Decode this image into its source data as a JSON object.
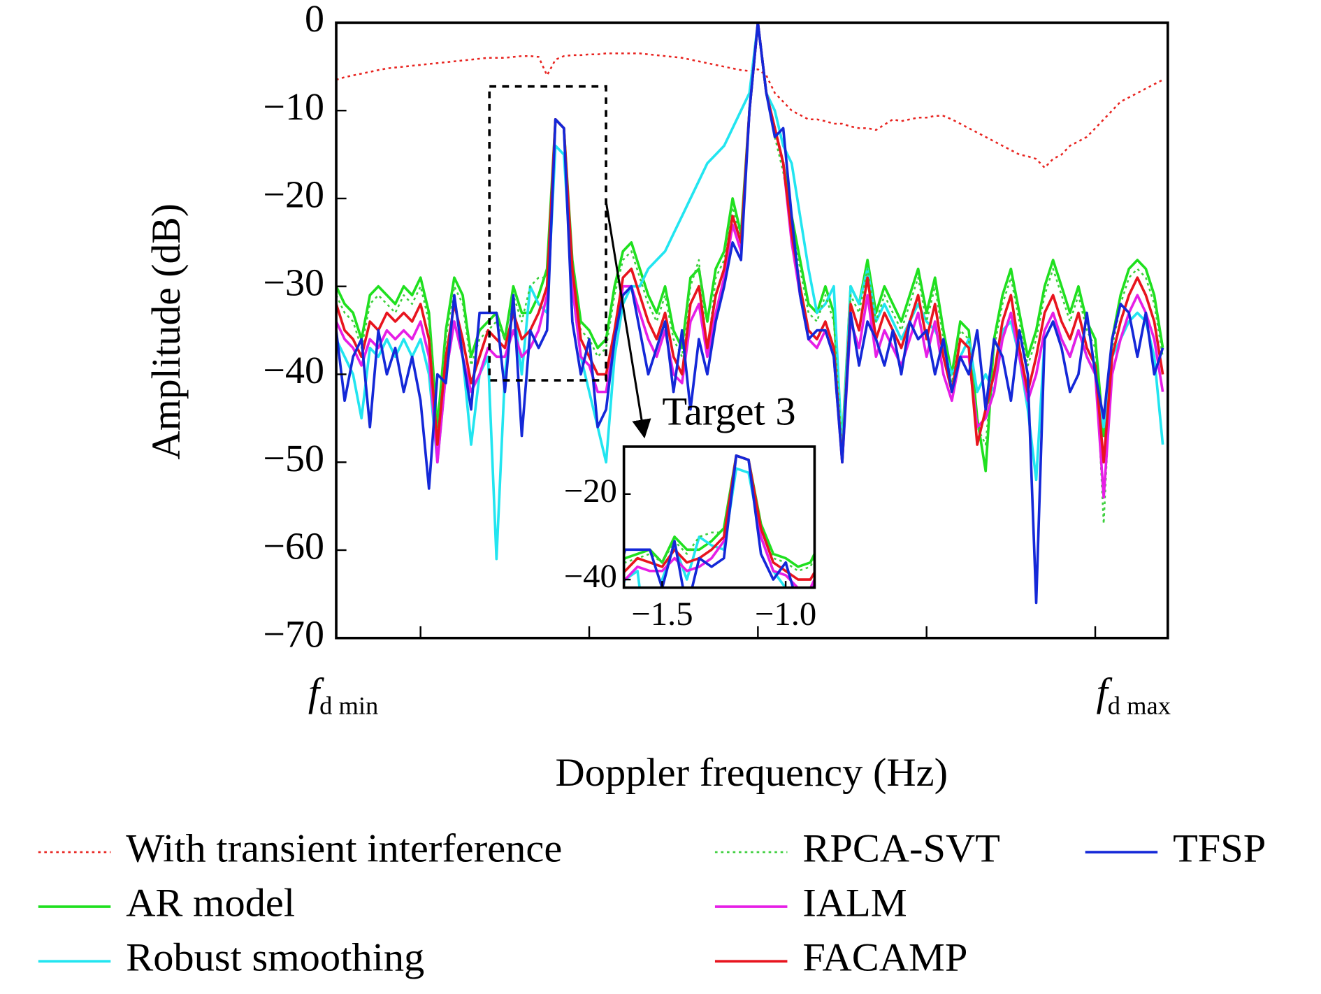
{
  "chart_data": {
    "type": "line",
    "x_label": "Doppler frequency (Hz)",
    "y_label": "Amplitude (dB)",
    "x": [
      -2.5,
      -2.45,
      -2.4,
      -2.35,
      -2.3,
      -2.25,
      -2.2,
      -2.15,
      -2.1,
      -2.05,
      -2,
      -1.95,
      -1.9,
      -1.85,
      -1.8,
      -1.75,
      -1.7,
      -1.65,
      -1.6,
      -1.55,
      -1.5,
      -1.45,
      -1.4,
      -1.35,
      -1.3,
      -1.25,
      -1.2,
      -1.15,
      -1.1,
      -1.05,
      -1,
      -0.95,
      -0.9,
      -0.85,
      -0.8,
      -0.75,
      -0.7,
      -0.65,
      -0.6,
      -0.55,
      -0.5,
      -0.45,
      -0.4,
      -0.35,
      -0.3,
      -0.25,
      -0.2,
      -0.15,
      -0.1,
      -0.05,
      0,
      0.05,
      0.1,
      0.15,
      0.2,
      0.25,
      0.3,
      0.35,
      0.4,
      0.45,
      0.5,
      0.55,
      0.6,
      0.65,
      0.7,
      0.75,
      0.8,
      0.85,
      0.9,
      0.95,
      1,
      1.05,
      1.1,
      1.15,
      1.2,
      1.25,
      1.3,
      1.35,
      1.4,
      1.45,
      1.5,
      1.55,
      1.6,
      1.65,
      1.7,
      1.75,
      1.8,
      1.85,
      1.9,
      1.95,
      2,
      2.05,
      2.1,
      2.15,
      2.2,
      2.25,
      2.3,
      2.35,
      2.4
    ],
    "xlim": [
      -2.5,
      2.43
    ],
    "xticks": [
      -2,
      -1,
      0,
      1,
      2
    ],
    "x_end_labels": [
      {
        "main": "f",
        "sub": "d min"
      },
      {
        "main": "f",
        "sub": "d max"
      }
    ],
    "ylim": [
      -70,
      0
    ],
    "yticks": [
      0,
      {
        "value": -10,
        "label": "−10"
      },
      {
        "value": -20,
        "label": "−20"
      },
      {
        "value": -30,
        "label": "−30"
      },
      {
        "value": -40,
        "label": "−40"
      },
      {
        "value": -50,
        "label": "−50"
      },
      {
        "value": -60,
        "label": "−60"
      },
      {
        "value": -70,
        "label": "−70"
      }
    ],
    "series": [
      {
        "name": "With transient interference",
        "color": "#e8231f",
        "style": "dotted",
        "values": [
          -6.5,
          -6.2,
          -6,
          -5.8,
          -5.6,
          -5.4,
          -5.2,
          -5.1,
          -5,
          -4.9,
          -4.8,
          -4.7,
          -4.6,
          -4.5,
          -4.4,
          -4.3,
          -4.2,
          -4.1,
          -4,
          -4,
          -4,
          -3.9,
          -3.8,
          -3.8,
          -3.9,
          -6,
          -4.2,
          -3.8,
          -3.7,
          -3.7,
          -3.6,
          -3.6,
          -3.5,
          -3.5,
          -3.5,
          -3.5,
          -3.5,
          -3.6,
          -3.7,
          -3.8,
          -3.9,
          -4,
          -4.2,
          -4.4,
          -4.6,
          -4.8,
          -5,
          -5.2,
          -5.4,
          -5.5,
          -5.3,
          -6,
          -8,
          -9,
          -10,
          -10.5,
          -11,
          -11,
          -11.2,
          -11.5,
          -11.5,
          -11.8,
          -12,
          -12,
          -12.2,
          -11.6,
          -11,
          -11.2,
          -11,
          -10.8,
          -10.8,
          -10.6,
          -10.6,
          -11,
          -11.5,
          -12,
          -12.5,
          -13,
          -13.5,
          -14,
          -14.5,
          -15,
          -15.2,
          -15.5,
          -16.5,
          -15.5,
          -15,
          -14,
          -13.5,
          -13,
          -12,
          -11,
          -10,
          -9,
          -8.5,
          -8,
          -7.5,
          -7,
          -6.5
        ]
      },
      {
        "name": "AR model",
        "color": "#1fe01f",
        "style": "solid",
        "values": [
          -30,
          -32,
          -33,
          -36,
          -31,
          -30,
          -31,
          -32,
          -30,
          -31,
          -29,
          -33,
          -46,
          -35,
          -29,
          -31,
          -38,
          -35,
          -34,
          -33,
          -36,
          -30,
          -33,
          -33,
          -31,
          -28,
          -11,
          -12,
          -27,
          -34,
          -35,
          -37,
          -36,
          -30,
          -26,
          -25,
          -28,
          -31,
          -33,
          -30,
          -35,
          -37,
          -29,
          -28,
          -34,
          -28,
          -26,
          -20,
          -24,
          -10,
          0,
          -8,
          -12,
          -16,
          -22,
          -27,
          -32,
          -33,
          -30,
          -33,
          -48,
          -30,
          -32,
          -27,
          -33,
          -30,
          -32,
          -34,
          -31,
          -28,
          -33,
          -29,
          -35,
          -40,
          -34,
          -35,
          -45,
          -51,
          -36,
          -31,
          -28,
          -33,
          -38,
          -35,
          -30,
          -27,
          -30,
          -33,
          -30,
          -34,
          -36,
          -47,
          -36,
          -31,
          -28,
          -27,
          -28,
          -31,
          -37
        ]
      },
      {
        "name": "Robust smoothing",
        "color": "#22e5f0",
        "style": "solid",
        "values": [
          -36,
          -38,
          -40,
          -45,
          -37,
          -38,
          -36,
          -38,
          -36,
          -38,
          -36,
          -40,
          -50,
          -40,
          -34,
          -38,
          -48,
          -40,
          -38,
          -61,
          -40,
          -32,
          -40,
          -30,
          -32,
          -33,
          -14,
          -15,
          -30,
          -38,
          -42,
          -46,
          -50,
          -38,
          -32,
          -30,
          -30,
          -28,
          -27,
          -26,
          -24,
          -22,
          -20,
          -18,
          -16,
          -15,
          -14,
          -12,
          -10,
          -8,
          0,
          -8,
          -10,
          -14,
          -16,
          -22,
          -28,
          -33,
          -32,
          -30,
          -49,
          -30,
          -32,
          -28,
          -34,
          -32,
          -34,
          -36,
          -34,
          -32,
          -34,
          -35,
          -37,
          -40,
          -38,
          -36,
          -42,
          -40,
          -42,
          -35,
          -34,
          -38,
          -44,
          -52,
          -36,
          -34,
          -36,
          -38,
          -35,
          -38,
          -40,
          -46,
          -38,
          -36,
          -34,
          -33,
          -34,
          -38,
          -48
        ]
      },
      {
        "name": "RPCA-SVT",
        "color": "#3ccf3c",
        "style": "dotted",
        "values": [
          -31,
          -33,
          -34,
          -37,
          -32,
          -31,
          -32,
          -33,
          -31,
          -32,
          -30,
          -34,
          -47,
          -36,
          -30,
          -32,
          -39,
          -36,
          -35,
          -34,
          -36,
          -31,
          -34,
          -30,
          -29,
          -29,
          -11,
          -12,
          -28,
          -35,
          -36,
          -38,
          -37,
          -31,
          -27,
          -26,
          -29,
          -32,
          -34,
          -31,
          -36,
          -38,
          -30,
          -27,
          -38,
          -29,
          -27,
          -21,
          -25,
          -10,
          0,
          -8,
          -13,
          -17,
          -23,
          -28,
          -33,
          -34,
          -31,
          -34,
          -49,
          -31,
          -33,
          -28,
          -34,
          -31,
          -33,
          -35,
          -32,
          -29,
          -34,
          -30,
          -36,
          -41,
          -35,
          -36,
          -46,
          -48,
          -37,
          -32,
          -29,
          -34,
          -39,
          -36,
          -31,
          -28,
          -31,
          -34,
          -31,
          -35,
          -37,
          -57,
          -37,
          -32,
          -29,
          -28,
          -29,
          -32,
          -38
        ]
      },
      {
        "name": "IALM",
        "color": "#e61ee6",
        "style": "solid",
        "values": [
          -34,
          -36,
          -37,
          -39,
          -36,
          -37,
          -35,
          -36,
          -35,
          -36,
          -34,
          -38,
          -50,
          -40,
          -34,
          -38,
          -42,
          -40,
          -37,
          -38,
          -38,
          -35,
          -38,
          -37,
          -35,
          -31,
          -11,
          -12,
          -30,
          -38,
          -39,
          -42,
          -42,
          -36,
          -30,
          -30,
          -33,
          -36,
          -38,
          -35,
          -40,
          -41,
          -34,
          -32,
          -38,
          -33,
          -29,
          -23,
          -26,
          -10,
          0,
          -8,
          -12,
          -16,
          -25,
          -31,
          -36,
          -37,
          -35,
          -38,
          -50,
          -34,
          -37,
          -31,
          -38,
          -35,
          -37,
          -39,
          -36,
          -33,
          -38,
          -34,
          -40,
          -43,
          -38,
          -38,
          -46,
          -45,
          -42,
          -36,
          -33,
          -38,
          -43,
          -40,
          -35,
          -33,
          -36,
          -38,
          -35,
          -38,
          -40,
          -54,
          -40,
          -36,
          -33,
          -31,
          -33,
          -36,
          -42
        ]
      },
      {
        "name": "FACAMP",
        "color": "#e8141e",
        "style": "solid",
        "values": [
          -32,
          -35,
          -36,
          -38,
          -34,
          -35,
          -33,
          -34,
          -33,
          -34,
          -32,
          -36,
          -48,
          -38,
          -32,
          -36,
          -41,
          -38,
          -35,
          -36,
          -37,
          -33,
          -36,
          -35,
          -33,
          -30,
          -11,
          -12,
          -28,
          -36,
          -38,
          -40,
          -40,
          -35,
          -29,
          -28,
          -31,
          -34,
          -36,
          -33,
          -38,
          -40,
          -32,
          -30,
          -37,
          -31,
          -28,
          -22,
          -25,
          -10,
          0,
          -8,
          -12,
          -16,
          -24,
          -30,
          -35,
          -36,
          -34,
          -37,
          -50,
          -32,
          -35,
          -29,
          -36,
          -33,
          -35,
          -37,
          -34,
          -31,
          -36,
          -32,
          -38,
          -42,
          -36,
          -37,
          -48,
          -44,
          -40,
          -34,
          -31,
          -37,
          -42,
          -38,
          -33,
          -31,
          -34,
          -36,
          -33,
          -37,
          -39,
          -50,
          -38,
          -34,
          -31,
          -29,
          -31,
          -34,
          -40
        ]
      },
      {
        "name": "TFSP",
        "color": "#1428d8",
        "style": "solid",
        "values": [
          -35,
          -43,
          -38,
          -36,
          -46,
          -35,
          -40,
          -37,
          -42,
          -38,
          -43,
          -53,
          -40,
          -41,
          -31,
          -38,
          -44,
          -33,
          -33,
          -33,
          -42,
          -31,
          -47,
          -35,
          -37,
          -35,
          -11,
          -12,
          -34,
          -40,
          -36,
          -46,
          -44,
          -36,
          -31,
          -30,
          -35,
          -40,
          -37,
          -34,
          -42,
          -35,
          -44,
          -36,
          -40,
          -34,
          -30,
          -25,
          -27,
          -10,
          0,
          -8,
          -13,
          -12,
          -22,
          -31,
          -36,
          -35,
          -35,
          -38,
          -50,
          -33,
          -39,
          -34,
          -36,
          -39,
          -35,
          -40,
          -34,
          -36,
          -35,
          -40,
          -36,
          -42,
          -38,
          -40,
          -35,
          -44,
          -36,
          -38,
          -43,
          -35,
          -40,
          -66,
          -36,
          -34,
          -37,
          -42,
          -40,
          -33,
          -40,
          -45,
          -36,
          -32,
          -33,
          -38,
          -33,
          -40,
          -37
        ]
      }
    ],
    "inset": {
      "annotation": "Target 3",
      "xlim": [
        -1.655,
        -0.883
      ],
      "ylim": [
        -41.9,
        -8.9
      ],
      "xticks": [
        {
          "value": -1.5,
          "label": "−1.5"
        },
        {
          "value": -1,
          "label": "−1.0"
        }
      ],
      "yticks": [
        {
          "value": -20,
          "label": "−20"
        },
        {
          "value": -40,
          "label": "−40"
        }
      ]
    }
  }
}
